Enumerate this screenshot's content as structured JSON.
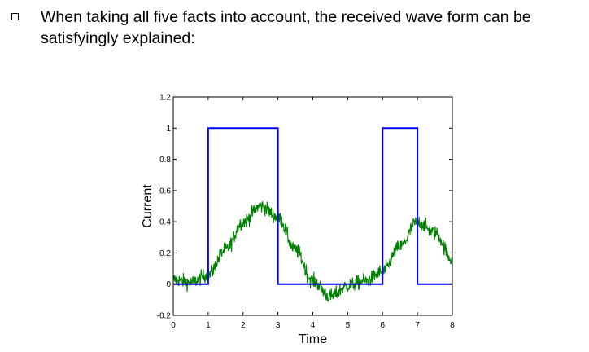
{
  "bullet": {
    "icon": "square-bullet-icon",
    "text": "When taking all five facts into account, the received wave form can be satisfyingly explained:"
  },
  "chart_data": {
    "type": "line",
    "title": "",
    "xlabel": "Time",
    "ylabel": "Current",
    "xlim": [
      0,
      8
    ],
    "ylim": [
      -0.2,
      1.2
    ],
    "xticks": [
      "0",
      "1",
      "2",
      "3",
      "4",
      "5",
      "6",
      "7",
      "8"
    ],
    "yticks": [
      "-0.2",
      "0",
      "0.2",
      "0.4",
      "0.6",
      "0.8",
      "1",
      "1.2"
    ],
    "grid": false,
    "legend": "none",
    "series": [
      {
        "color": "#0000ff",
        "style": "step",
        "x": [
          0,
          1,
          1,
          3,
          3,
          6,
          6,
          7,
          7,
          8
        ],
        "y": [
          0,
          0,
          1,
          1,
          0,
          0,
          1,
          1,
          0,
          0
        ]
      },
      {
        "color": "#008000",
        "style": "noisy",
        "x": [
          0,
          0.5,
          1,
          1.5,
          2,
          2.5,
          3,
          3.5,
          4,
          4.5,
          5,
          5.5,
          6,
          6.5,
          7,
          7.5,
          8
        ],
        "y": [
          0.03,
          0.01,
          0.06,
          0.22,
          0.4,
          0.5,
          0.43,
          0.22,
          0.02,
          -0.08,
          -0.01,
          0.02,
          0.08,
          0.24,
          0.4,
          0.33,
          0.16
        ]
      }
    ]
  }
}
